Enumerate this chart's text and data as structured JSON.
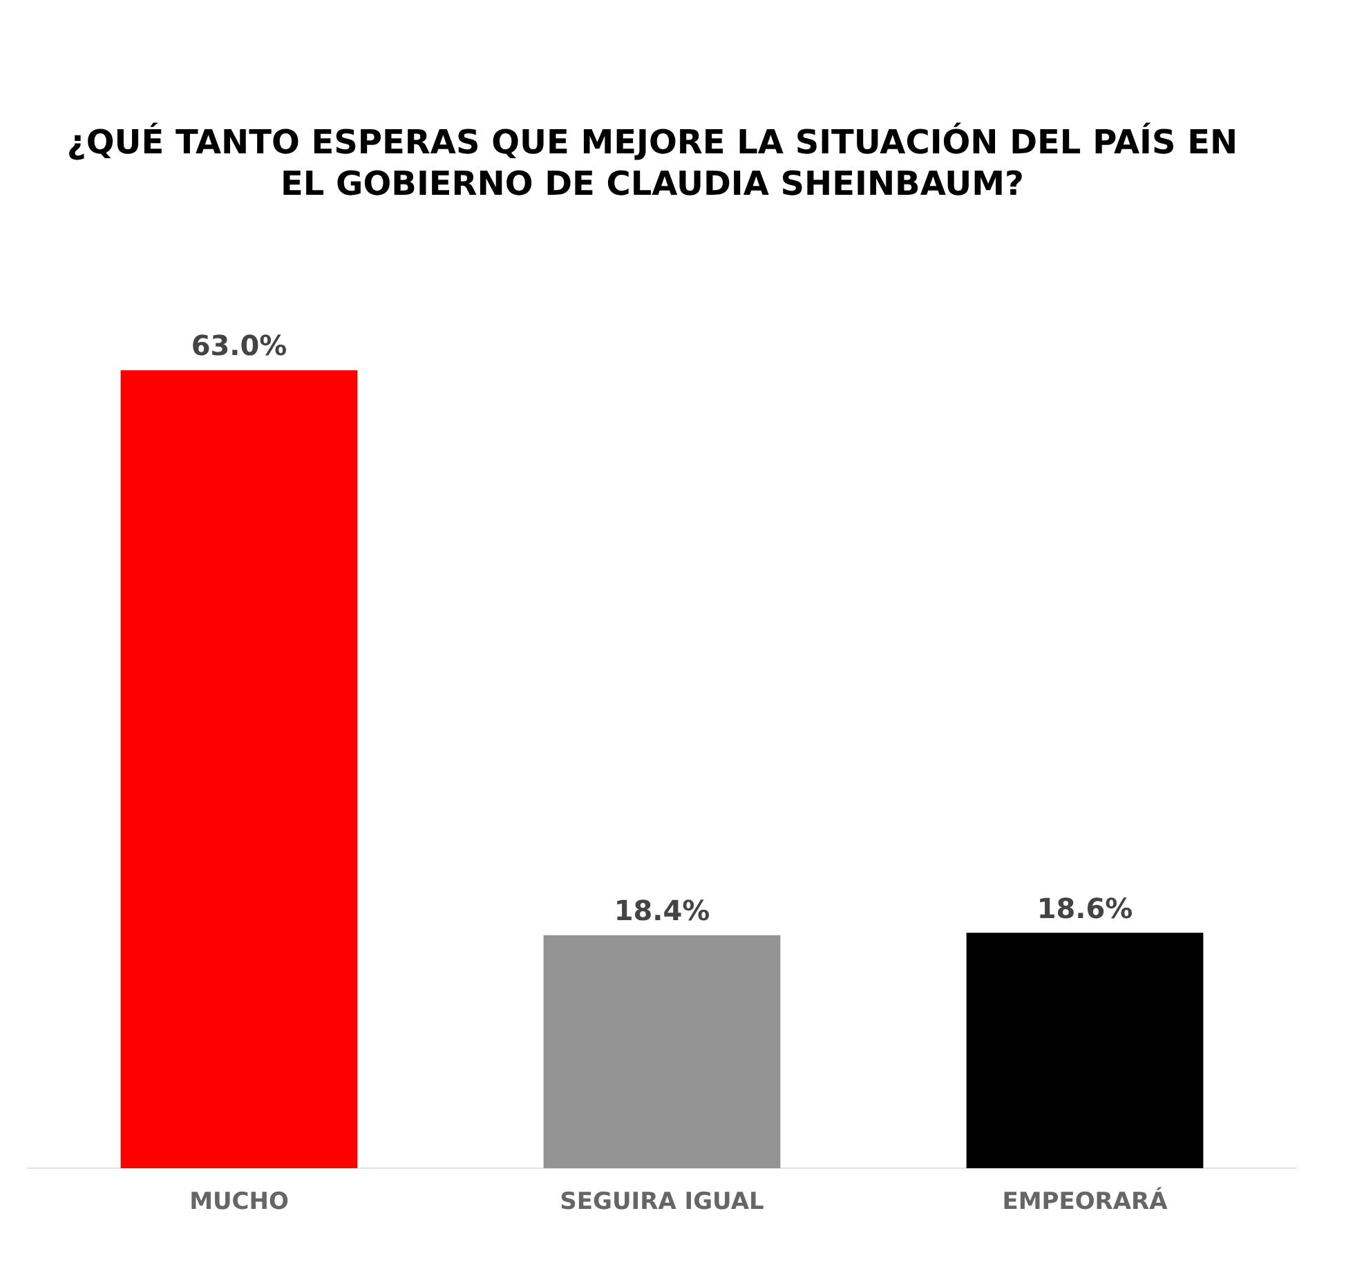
{
  "chart_data": {
    "type": "bar",
    "title": "¿QUÉ TANTO ESPERAS QUE MEJORE LA SITUACIÓN DEL PAÍS EN EL GOBIERNO DE CLAUDIA SHEINBAUM?",
    "categories": [
      "MUCHO",
      "SEGUIRA IGUAL",
      "EMPEORARÁ"
    ],
    "values": [
      63.0,
      18.4,
      18.6
    ],
    "colors": [
      "#ff0000",
      "#939393",
      "#000000"
    ],
    "value_labels": [
      "63.0%",
      "18.4%",
      "18.6%"
    ],
    "tick_labels": "x",
    "grid": false,
    "legend": false
  }
}
